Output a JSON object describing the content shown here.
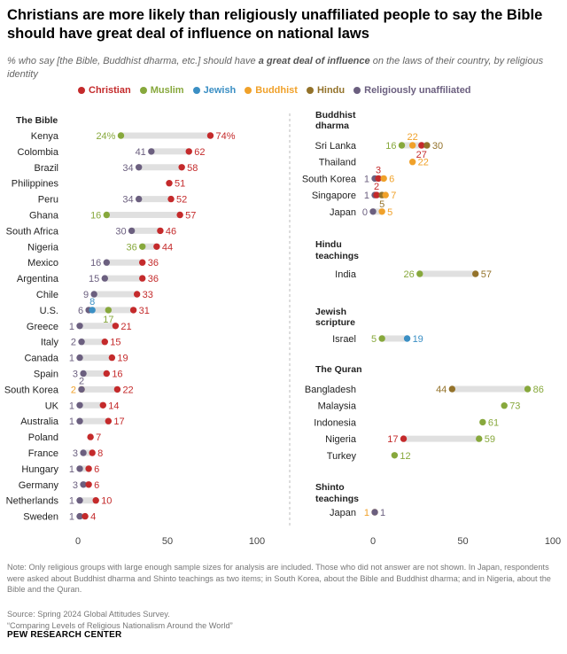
{
  "title": "Christians are more likely than religiously unaffiliated people to say the Bible should have great deal of influence on national laws",
  "subtitle": {
    "pre": "% who say [the Bible, Buddhist dharma, etc.] should have ",
    "bold": "a great deal of influence",
    "post": " on the laws of their country, by religious identity"
  },
  "colors": {
    "Christian": "#c42a2b",
    "Muslim": "#87a83c",
    "Jewish": "#3b8fc4",
    "Buddhist": "#f0a12a",
    "Hindu": "#93722a",
    "Religiously unaffiliated": "#6b5f7f"
  },
  "chart_data": [
    {
      "type": "dot",
      "group_title": "The Bible",
      "xlim": [
        0,
        100
      ],
      "ticks": [
        0,
        50,
        100
      ],
      "legend": [
        "Christian",
        "Muslim",
        "Jewish",
        "Buddhist",
        "Hindu",
        "Religiously unaffiliated"
      ],
      "rows": [
        {
          "country": "Kenya",
          "values": {
            "Muslim": 24,
            "Christian": 74
          },
          "labels": {
            "Muslim": "24%",
            "Christian": "74%"
          }
        },
        {
          "country": "Colombia",
          "values": {
            "Religiously unaffiliated": 41,
            "Christian": 62
          }
        },
        {
          "country": "Brazil",
          "values": {
            "Religiously unaffiliated": 34,
            "Christian": 58
          }
        },
        {
          "country": "Philippines",
          "values": {
            "Christian": 51
          }
        },
        {
          "country": "Peru",
          "values": {
            "Religiously unaffiliated": 34,
            "Christian": 52
          }
        },
        {
          "country": "Ghana",
          "values": {
            "Muslim": 16,
            "Christian": 57
          }
        },
        {
          "country": "South Africa",
          "values": {
            "Religiously unaffiliated": 30,
            "Christian": 46
          }
        },
        {
          "country": "Nigeria",
          "values": {
            "Muslim": 36,
            "Christian": 44
          }
        },
        {
          "country": "Mexico",
          "values": {
            "Religiously unaffiliated": 16,
            "Christian": 36
          }
        },
        {
          "country": "Argentina",
          "values": {
            "Religiously unaffiliated": 15,
            "Christian": 36
          }
        },
        {
          "country": "Chile",
          "values": {
            "Religiously unaffiliated": 9,
            "Christian": 33
          }
        },
        {
          "country": "U.S.",
          "values": {
            "Religiously unaffiliated": 6,
            "Jewish": 8,
            "Muslim": 17,
            "Christian": 31
          }
        },
        {
          "country": "Greece",
          "values": {
            "Religiously unaffiliated": 1,
            "Christian": 21
          }
        },
        {
          "country": "Italy",
          "values": {
            "Religiously unaffiliated": 2,
            "Christian": 15
          }
        },
        {
          "country": "Canada",
          "values": {
            "Religiously unaffiliated": 1,
            "Christian": 19
          }
        },
        {
          "country": "Spain",
          "values": {
            "Religiously unaffiliated": 3,
            "Christian": 16
          }
        },
        {
          "country": "South Korea",
          "values": {
            "Buddhist": 2,
            "Religiously unaffiliated": 2,
            "Christian": 22
          }
        },
        {
          "country": "UK",
          "values": {
            "Religiously unaffiliated": 1,
            "Christian": 14
          }
        },
        {
          "country": "Australia",
          "values": {
            "Religiously unaffiliated": 1,
            "Christian": 17
          }
        },
        {
          "country": "Poland",
          "values": {
            "Christian": 7
          }
        },
        {
          "country": "France",
          "values": {
            "Religiously unaffiliated": 3,
            "Christian": 8
          }
        },
        {
          "country": "Hungary",
          "values": {
            "Religiously unaffiliated": 1,
            "Christian": 6
          }
        },
        {
          "country": "Germany",
          "values": {
            "Religiously unaffiliated": 3,
            "Christian": 6
          }
        },
        {
          "country": "Netherlands",
          "values": {
            "Religiously unaffiliated": 1,
            "Christian": 10
          }
        },
        {
          "country": "Sweden",
          "values": {
            "Religiously unaffiliated": 1,
            "Christian": 4
          }
        }
      ]
    },
    {
      "type": "dot",
      "group_title": "Buddhist dharma",
      "xlim": [
        0,
        100
      ],
      "ticks": [
        0,
        50,
        100
      ],
      "rows": [
        {
          "country": "Sri Lanka",
          "values": {
            "Muslim": 16,
            "Buddhist": 22,
            "Christian": 27,
            "Hindu": 30
          }
        },
        {
          "country": "Thailand",
          "values": {
            "Buddhist": 22
          }
        },
        {
          "country": "South Korea",
          "values": {
            "Religiously unaffiliated": 1,
            "Christian": 3,
            "Buddhist": 6
          }
        },
        {
          "country": "Singapore",
          "values": {
            "Religiously unaffiliated": 1,
            "Christian": 2,
            "Buddhist": 7,
            "Hindu": 5
          }
        },
        {
          "country": "Japan",
          "values": {
            "Religiously unaffiliated": 0,
            "Buddhist": 5
          }
        }
      ]
    },
    {
      "type": "dot",
      "group_title": "Hindu teachings",
      "rows": [
        {
          "country": "India",
          "values": {
            "Muslim": 26,
            "Hindu": 57
          }
        }
      ]
    },
    {
      "type": "dot",
      "group_title": "Jewish scripture",
      "rows": [
        {
          "country": "Israel",
          "values": {
            "Muslim": 5,
            "Jewish": 19
          }
        }
      ]
    },
    {
      "type": "dot",
      "group_title": "The Quran",
      "rows": [
        {
          "country": "Bangladesh",
          "values": {
            "Hindu": 44,
            "Muslim": 86
          }
        },
        {
          "country": "Malaysia",
          "values": {
            "Muslim": 73
          }
        },
        {
          "country": "Indonesia",
          "values": {
            "Muslim": 61
          }
        },
        {
          "country": "Nigeria",
          "values": {
            "Christian": 17,
            "Muslim": 59
          }
        },
        {
          "country": "Turkey",
          "values": {
            "Muslim": 12
          }
        }
      ]
    },
    {
      "type": "dot",
      "group_title": "Shinto teachings",
      "rows": [
        {
          "country": "Japan",
          "values": {
            "Buddhist": 1,
            "Religiously unaffiliated": 1
          }
        }
      ]
    }
  ],
  "notes": "Note: Only religious groups with large enough sample sizes for analysis are included. Those who did not answer are not shown. In Japan, respondents were asked about Buddhist dharma and Shinto teachings as two items; in South Korea, about the Bible and Buddhist dharma; and in Nigeria, about the Bible and the Quran.",
  "source": "Source: Spring 2024 Global Attitudes Survey.",
  "report": "“Comparing Levels of Religious Nationalism Around the World”",
  "brand": "PEW RESEARCH CENTER"
}
